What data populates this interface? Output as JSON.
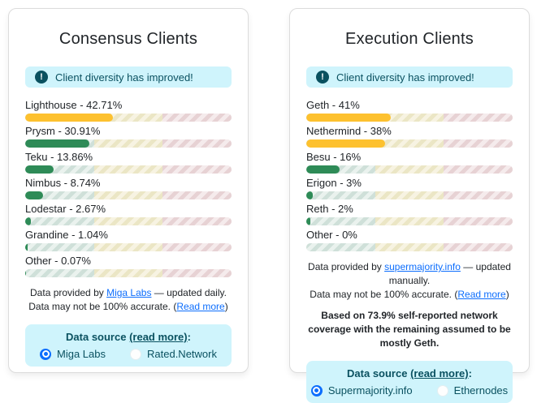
{
  "colors": {
    "amber": "#fdc12f",
    "green": "#2e8b57",
    "link": "#0d6efd",
    "cyanbg": "#cff4fc",
    "darkteal": "#0a5160",
    "zone-safe-a": "#cfe0d9",
    "zone-safe-b": "#eaf2ee",
    "zone-warn-a": "#ebe6c5",
    "zone-warn-b": "#f7f3e2",
    "zone-danger-a": "#e7d2d4",
    "zone-danger-b": "#f5ebec"
  },
  "alert_icon_glyph": "!",
  "cards": [
    {
      "title": "Consensus Clients",
      "alert_text": "Client diversity has improved!",
      "bars": [
        {
          "label": "Lighthouse - 42.71%",
          "value": 42.71,
          "fill": "amber"
        },
        {
          "label": "Prysm - 30.91%",
          "value": 30.91,
          "fill": "green"
        },
        {
          "label": "Teku - 13.86%",
          "value": 13.86,
          "fill": "green"
        },
        {
          "label": "Nimbus - 8.74%",
          "value": 8.74,
          "fill": "green"
        },
        {
          "label": "Lodestar - 2.67%",
          "value": 2.67,
          "fill": "green"
        },
        {
          "label": "Grandine - 1.04%",
          "value": 1.04,
          "fill": "green"
        },
        {
          "label": "Other - 0.07%",
          "value": 0.07,
          "fill": "green"
        }
      ],
      "footer": {
        "line1_prefix": "Data provided by ",
        "line1_link": "Miga Labs",
        "line1_suffix": " — updated daily.",
        "line2_prefix": "Data may not be 100% accurate. (",
        "line2_link": "Read more",
        "line2_suffix": ")"
      },
      "datasource": {
        "heading_prefix": "Data source ",
        "heading_link": "(read more)",
        "heading_suffix": ":",
        "radios": [
          {
            "label": "Miga Labs",
            "selected": true
          },
          {
            "label": "Rated.Network",
            "selected": false
          }
        ]
      }
    },
    {
      "title": "Execution Clients",
      "alert_text": "Client diversity has improved!",
      "bars": [
        {
          "label": "Geth - 41%",
          "value": 41,
          "fill": "amber"
        },
        {
          "label": "Nethermind - 38%",
          "value": 38,
          "fill": "amber"
        },
        {
          "label": "Besu - 16%",
          "value": 16,
          "fill": "green"
        },
        {
          "label": "Erigon - 3%",
          "value": 3,
          "fill": "green"
        },
        {
          "label": "Reth - 2%",
          "value": 2,
          "fill": "green"
        },
        {
          "label": "Other - 0%",
          "value": 0,
          "fill": "green"
        }
      ],
      "footer": {
        "line1_prefix": "Data provided by ",
        "line1_link": "supermajority.info",
        "line1_suffix": " — updated manually.",
        "line2_prefix": "Data may not be 100% accurate. (",
        "line2_link": "Read more",
        "line2_suffix": ")"
      },
      "note": "Based on 73.9% self-reported network coverage with the remaining assumed to be mostly Geth.",
      "datasource": {
        "heading_prefix": "Data source ",
        "heading_link": "(read more)",
        "heading_suffix": ":",
        "radios": [
          {
            "label": "Supermajority.info",
            "selected": true
          },
          {
            "label": "Ethernodes",
            "selected": false
          }
        ]
      }
    }
  ]
}
